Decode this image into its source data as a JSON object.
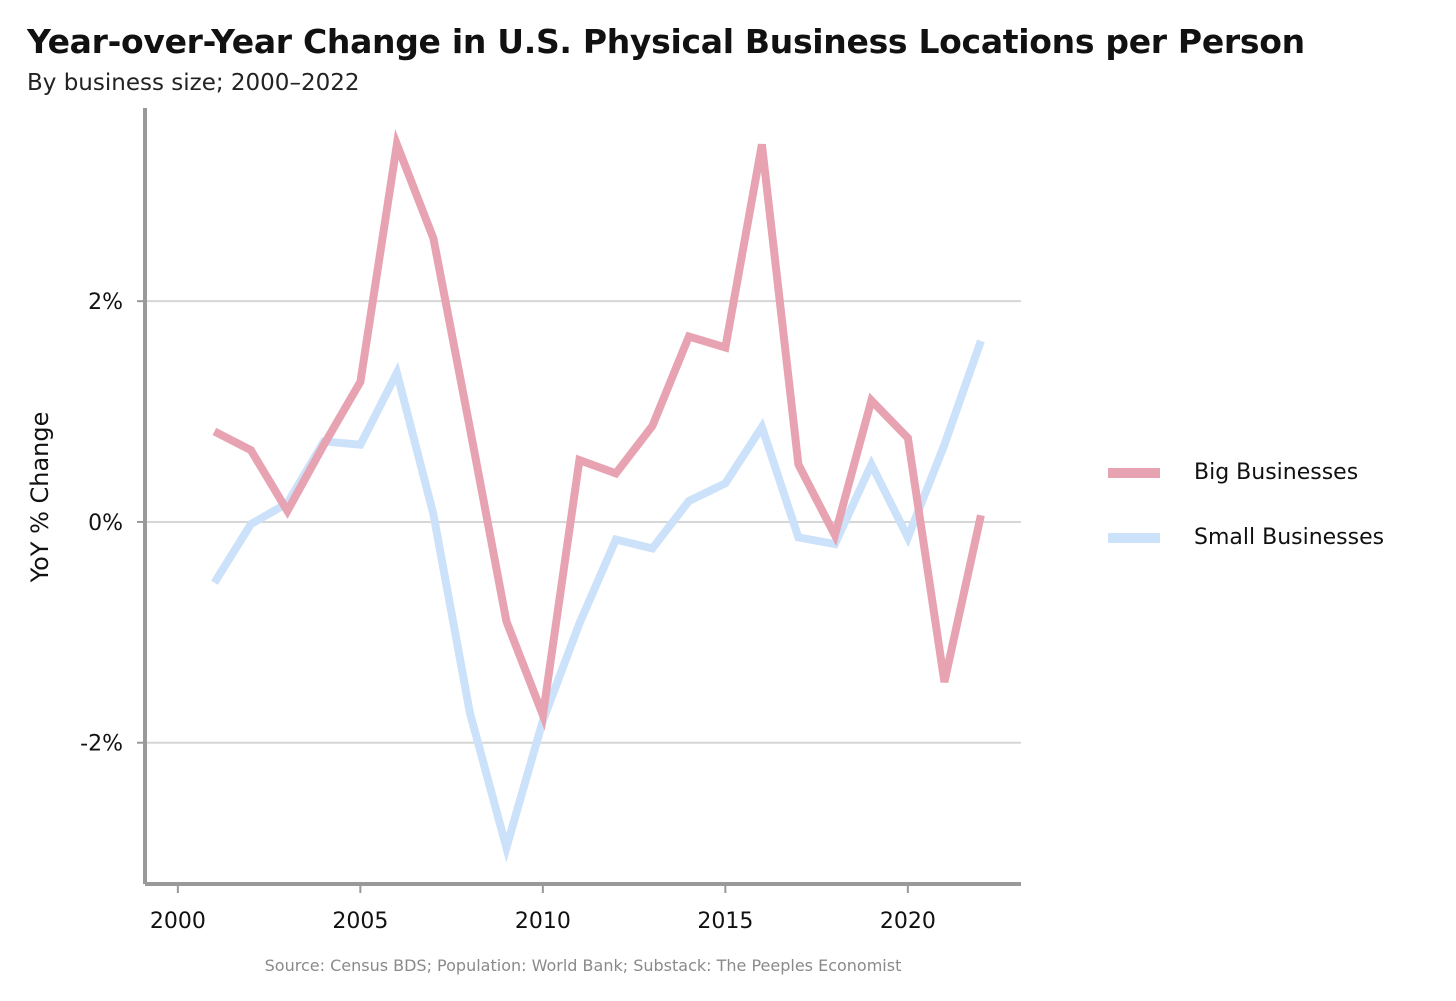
{
  "chart_data": {
    "type": "line",
    "title": "Year-over-Year Change in U.S. Physical Business Locations per Person",
    "subtitle": "By business size; 2000–2022",
    "xlabel": "",
    "ylabel": "YoY % Change",
    "source": "Source: Census BDS; Population: World Bank; Substack: The Peeples Economist",
    "xlim": [
      1999.1,
      2023.1
    ],
    "ylim": [
      -3.28,
      3.75
    ],
    "x_ticks": [
      2000,
      2005,
      2010,
      2015,
      2020
    ],
    "x_tick_labels": [
      "2000",
      "2005",
      "2010",
      "2015",
      "2020"
    ],
    "y_ticks": [
      -2,
      0,
      2
    ],
    "y_tick_labels": [
      "-2%",
      "0%",
      "2%"
    ],
    "grid": true,
    "legend_position": "right",
    "x": [
      2001,
      2002,
      2003,
      2004,
      2005,
      2006,
      2007,
      2008,
      2009,
      2010,
      2011,
      2012,
      2013,
      2014,
      2015,
      2016,
      2017,
      2018,
      2019,
      2020,
      2021,
      2022
    ],
    "series": [
      {
        "name": "Big Businesses",
        "color": "#e8a3b2",
        "values": [
          0.82,
          0.65,
          0.1,
          0.7,
          1.27,
          3.42,
          2.57,
          0.85,
          -0.9,
          -1.75,
          0.56,
          0.44,
          0.87,
          1.68,
          1.58,
          3.42,
          0.52,
          -0.12,
          1.1,
          0.76,
          -1.45,
          0.06
        ]
      },
      {
        "name": "Small Businesses",
        "color": "#cce1fa",
        "values": [
          -0.55,
          -0.02,
          0.17,
          0.73,
          0.7,
          1.35,
          0.07,
          -1.73,
          -2.95,
          -1.8,
          -0.92,
          -0.16,
          -0.24,
          0.19,
          0.35,
          0.86,
          -0.14,
          -0.2,
          0.52,
          -0.14,
          0.7,
          1.64
        ]
      }
    ]
  }
}
